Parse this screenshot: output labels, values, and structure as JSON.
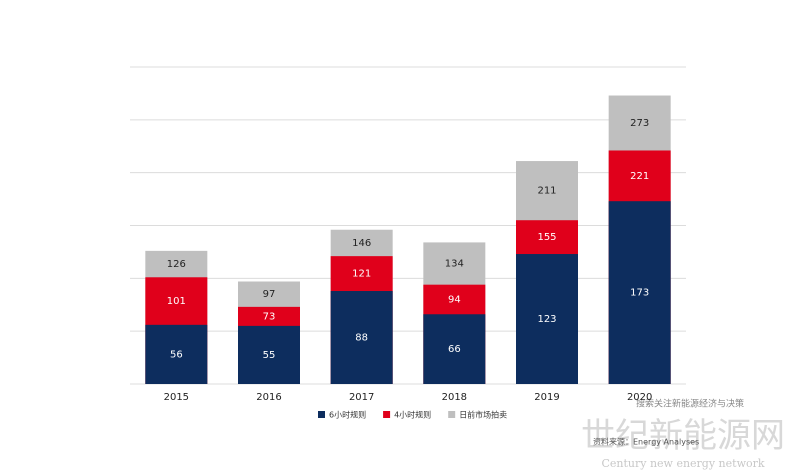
{
  "chart_data": {
    "type": "bar",
    "overlap": true,
    "categories": [
      "2015",
      "2016",
      "2017",
      "2018",
      "2019",
      "2020"
    ],
    "series": [
      {
        "name": "日前市场拍卖",
        "color": "#bfbfbf",
        "label_color": "#222222",
        "values": [
          126,
          97,
          146,
          134,
          211,
          273
        ]
      },
      {
        "name": "4小时规则",
        "color": "#e0001b",
        "label_color": "#ffffff",
        "values": [
          101,
          73,
          121,
          94,
          155,
          221
        ]
      },
      {
        "name": "6小时规则",
        "color": "#0d2d5e",
        "label_color": "#ffffff",
        "values": [
          56,
          55,
          88,
          66,
          123,
          173
        ]
      }
    ],
    "legend_order": [
      2,
      1,
      0
    ],
    "ylim": [
      0,
      300
    ],
    "yticks": [
      0,
      50,
      100,
      150,
      200,
      250,
      300
    ],
    "grid": true
  },
  "watermark": {
    "title": "世纪新能源网",
    "subtitle": "Century new energy network",
    "source": "资料来源：Energy Analyses",
    "banner": "搜索关注新能源经济与决策"
  }
}
